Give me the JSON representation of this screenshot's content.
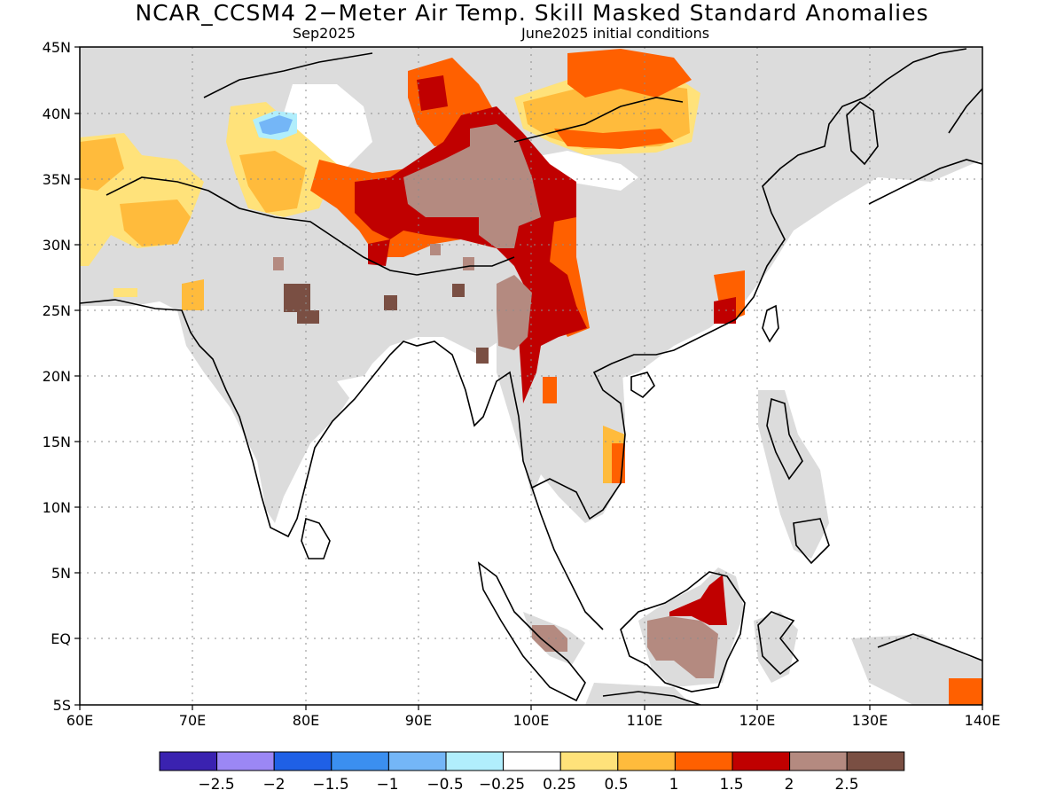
{
  "title": "NCAR_CCSM4 2−Meter Air Temp. Skill Masked Standard Anomalies",
  "subtitle_left": "Sep2025",
  "subtitle_right": "June2025 initial conditions",
  "map": {
    "lon_labels": [
      "60E",
      "70E",
      "80E",
      "90E",
      "100E",
      "110E",
      "120E",
      "130E",
      "140E"
    ],
    "lat_labels": [
      "45N",
      "40N",
      "35N",
      "30N",
      "25N",
      "20N",
      "15N",
      "10N",
      "5N",
      "EQ",
      "5S"
    ],
    "lon_range": [
      60,
      140
    ],
    "lat_range": [
      -5,
      45
    ],
    "no_skill_mask_color": "#dcdcdc",
    "coastline_color": "#000000",
    "gridline_style": "dotted"
  },
  "colorbar": {
    "colors": [
      "#3a22b0",
      "#9b87f5",
      "#1f60e6",
      "#3b8ff0",
      "#74b6f7",
      "#b1eefc",
      "#ffffff",
      "#ffe27a",
      "#ffbb3c",
      "#ff6000",
      "#c00000",
      "#b48a80",
      "#7a4f43"
    ],
    "labels": [
      "−2.5",
      "−2",
      "−1.5",
      "−1",
      "−0.5",
      "−0.25",
      "0.25",
      "0.5",
      "1",
      "1.5",
      "2",
      "2.5"
    ]
  }
}
